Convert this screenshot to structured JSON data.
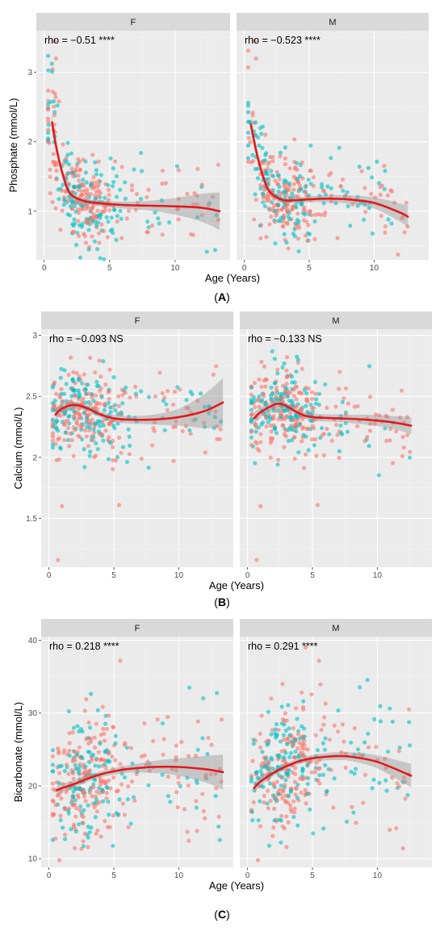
{
  "chart_data": [
    {
      "type": "scatter",
      "panel_label": "A",
      "ylabel": "Phosphate (mmol/L)",
      "xlabel": "Age (Years)",
      "facets": [
        "F",
        "M"
      ],
      "x_ticks": [
        0,
        5,
        10
      ],
      "y_ticks": [
        1,
        2,
        3
      ],
      "xlim": [
        -0.6,
        14.2
      ],
      "ylim": [
        0.3,
        3.6
      ],
      "annotations": [
        "rho = −0.51 ****",
        "rho = −0.523 ****"
      ],
      "series_colors": [
        "#F8766D",
        "#00BFC4"
      ],
      "trend_color": "#E41A1C",
      "trend": [
        {
          "facet": "F",
          "x": [
            0.6,
            1.0,
            1.5,
            2.0,
            3.0,
            4.0,
            6.0,
            8.0,
            10.0,
            12.0,
            13.4
          ],
          "y": [
            2.28,
            1.85,
            1.48,
            1.25,
            1.15,
            1.12,
            1.09,
            1.08,
            1.07,
            1.05,
            1.0
          ],
          "ci": [
            0.12,
            0.08,
            0.06,
            0.05,
            0.04,
            0.04,
            0.05,
            0.07,
            0.12,
            0.2,
            0.27
          ]
        },
        {
          "facet": "M",
          "x": [
            0.5,
            1.0,
            1.5,
            2.0,
            3.0,
            4.0,
            6.0,
            8.0,
            10.0,
            12.0,
            12.6
          ],
          "y": [
            2.25,
            1.8,
            1.47,
            1.27,
            1.16,
            1.16,
            1.18,
            1.17,
            1.12,
            0.98,
            0.92
          ],
          "ci": [
            0.12,
            0.08,
            0.06,
            0.05,
            0.04,
            0.04,
            0.05,
            0.06,
            0.08,
            0.13,
            0.16
          ]
        }
      ],
      "scatter_model": {
        "n_per_facet": 360,
        "peak_age": 2.5,
        "young_values": [
          2.4,
          2.3
        ],
        "settled_values": [
          1.12,
          1.15
        ],
        "spread": 0.32,
        "outliers": [
          [
            0.8,
            3.45
          ],
          [
            0.9,
            3.2
          ]
        ]
      }
    },
    {
      "type": "scatter",
      "panel_label": "B",
      "ylabel": "Calcium (mmol/L)",
      "xlabel": "Age (Years)",
      "facets": [
        "F",
        "M"
      ],
      "x_ticks": [
        0,
        5,
        10
      ],
      "y_ticks": [
        1.5,
        2.0,
        2.5,
        3.0
      ],
      "xlim": [
        -0.6,
        14.2
      ],
      "ylim": [
        1.1,
        3.05
      ],
      "annotations": [
        "rho = −0.093 NS",
        "rho = −0.133 NS"
      ],
      "series_colors": [
        "#F8766D",
        "#00BFC4"
      ],
      "trend_color": "#E41A1C",
      "trend": [
        {
          "facet": "F",
          "x": [
            0.5,
            1.0,
            2.0,
            3.0,
            4.0,
            5.0,
            6.0,
            8.0,
            10.0,
            12.0,
            13.4
          ],
          "y": [
            2.35,
            2.4,
            2.43,
            2.4,
            2.35,
            2.32,
            2.31,
            2.31,
            2.33,
            2.38,
            2.45
          ],
          "ci": [
            0.05,
            0.04,
            0.025,
            0.025,
            0.025,
            0.03,
            0.03,
            0.04,
            0.07,
            0.14,
            0.2
          ]
        },
        {
          "facet": "M",
          "x": [
            0.5,
            1.0,
            2.0,
            2.5,
            3.0,
            4.0,
            5.0,
            7.0,
            9.0,
            11.0,
            12.6
          ],
          "y": [
            2.32,
            2.37,
            2.43,
            2.44,
            2.42,
            2.36,
            2.33,
            2.32,
            2.31,
            2.29,
            2.26
          ],
          "ci": [
            0.05,
            0.04,
            0.03,
            0.025,
            0.025,
            0.025,
            0.03,
            0.03,
            0.04,
            0.05,
            0.07
          ]
        }
      ],
      "scatter_model": {
        "n_per_facet": 380,
        "peak_age": 2.2,
        "young_values": [
          2.4,
          2.42
        ],
        "settled_values": [
          2.32,
          2.3
        ],
        "spread": 0.17,
        "outliers": [
          [
            5.4,
            1.61
          ],
          [
            1.0,
            1.6
          ],
          [
            0.7,
            1.16
          ]
        ]
      }
    },
    {
      "type": "scatter",
      "panel_label": "C",
      "ylabel": "Bicarbonate (mmol/L)",
      "xlabel": "Age (Years)",
      "facets": [
        "F",
        "M"
      ],
      "x_ticks": [
        0,
        5,
        10
      ],
      "y_ticks": [
        10,
        20,
        30,
        40
      ],
      "xlim": [
        -0.6,
        14.2
      ],
      "ylim": [
        8.8,
        40.5
      ],
      "annotations": [
        "rho = 0.218 ****",
        "rho = 0.291 ****"
      ],
      "series_colors": [
        "#F8766D",
        "#00BFC4"
      ],
      "trend_color": "#E41A1C",
      "trend": [
        {
          "facet": "F",
          "x": [
            0.6,
            1.0,
            2.0,
            3.0,
            4.0,
            5.0,
            6.0,
            8.0,
            10.0,
            12.0,
            13.4
          ],
          "y": [
            19.4,
            19.7,
            20.3,
            21.0,
            21.6,
            22.0,
            22.3,
            22.6,
            22.6,
            22.3,
            21.9
          ],
          "ci": [
            0.7,
            0.6,
            0.5,
            0.4,
            0.4,
            0.45,
            0.5,
            0.8,
            1.2,
            1.8,
            2.4
          ]
        },
        {
          "facet": "M",
          "x": [
            0.5,
            1.0,
            2.0,
            3.0,
            4.0,
            5.0,
            6.0,
            7.0,
            8.0,
            10.0,
            12.6
          ],
          "y": [
            19.7,
            20.6,
            21.8,
            22.7,
            23.4,
            23.8,
            24.0,
            24.1,
            24.0,
            23.3,
            21.4
          ],
          "ci": [
            0.7,
            0.6,
            0.45,
            0.4,
            0.4,
            0.45,
            0.5,
            0.55,
            0.6,
            0.9,
            1.6
          ]
        }
      ],
      "scatter_model": {
        "n_per_facet": 380,
        "peak_age": 2.5,
        "young_values": [
          19.5,
          20.0
        ],
        "settled_values": [
          22.5,
          23.5
        ],
        "spread": 4.3,
        "outliers": [
          [
            5.5,
            37.2
          ],
          [
            0.8,
            9.8
          ],
          [
            3.0,
            11.6
          ]
        ]
      }
    }
  ]
}
